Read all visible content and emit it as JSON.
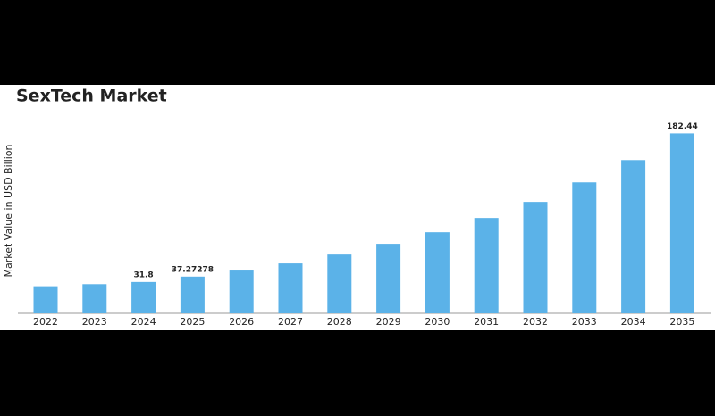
{
  "chart_data": {
    "type": "bar",
    "title": "SexTech Market",
    "y_label": "Market Value in USD Billion",
    "categories": [
      "2022",
      "2023",
      "2024",
      "2025",
      "2026",
      "2027",
      "2028",
      "2029",
      "2030",
      "2031",
      "2032",
      "2033",
      "2034",
      "2035"
    ],
    "values": [
      27.5,
      29.6,
      31.8,
      37.27278,
      43.4,
      50.6,
      59.6,
      70.5,
      82.2,
      96.7,
      113,
      132.8,
      155.4,
      182.44
    ],
    "value_labels": [
      null,
      null,
      "31.8",
      "37.27278",
      null,
      null,
      null,
      null,
      null,
      null,
      null,
      null,
      null,
      "182.44"
    ],
    "color": "#5bb2e8",
    "ylim": [
      0,
      200
    ]
  }
}
